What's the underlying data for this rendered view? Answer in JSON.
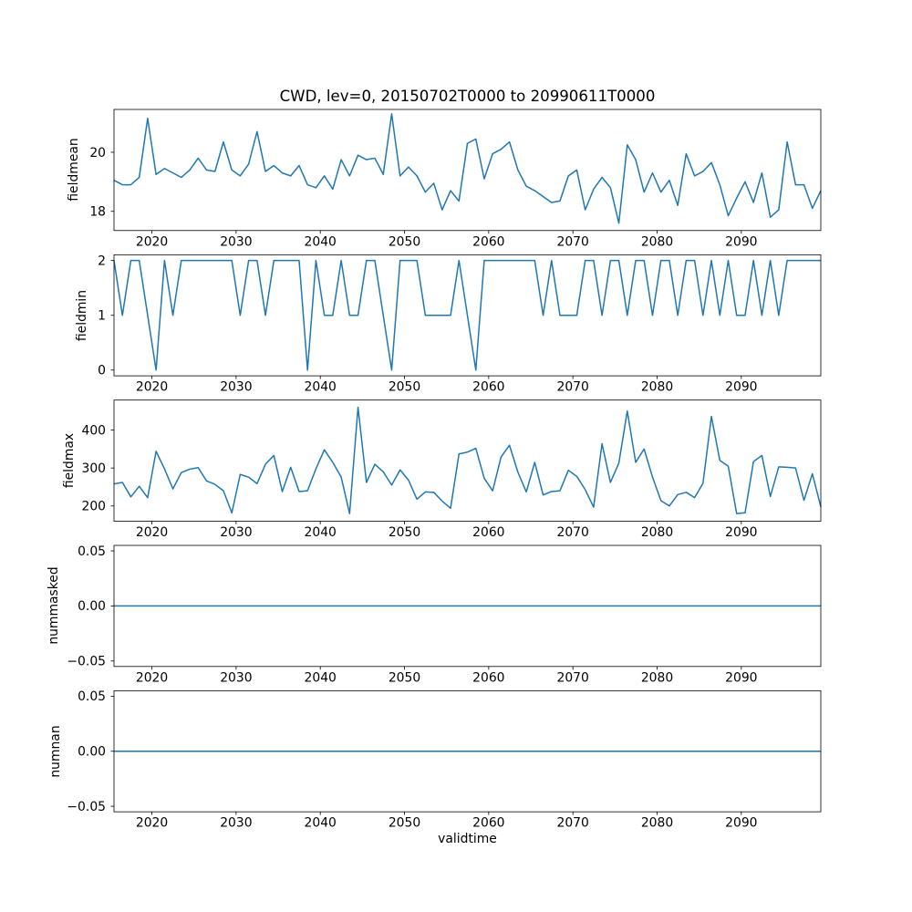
{
  "figure": {
    "background": "#ffffff",
    "text_color": "#000000"
  },
  "chart_data": {
    "type": "line",
    "title": "CWD, lev=0, 20150702T0000 to 20990611T0000",
    "xlabel": "validtime",
    "line_color": "#1f77b4",
    "grid": false,
    "legend": "off",
    "xlim": [
      2015.5,
      2099.44
    ],
    "x_ticks": [
      2020,
      2030,
      2040,
      2050,
      2060,
      2070,
      2080,
      2090
    ],
    "x_tick_labels": [
      "2020",
      "2030",
      "2040",
      "2050",
      "2060",
      "2070",
      "2080",
      "2090"
    ],
    "x_years": [
      2015,
      2016,
      2017,
      2018,
      2019,
      2020,
      2021,
      2022,
      2023,
      2024,
      2025,
      2026,
      2027,
      2028,
      2029,
      2030,
      2031,
      2032,
      2033,
      2034,
      2035,
      2036,
      2037,
      2038,
      2039,
      2040,
      2041,
      2042,
      2043,
      2044,
      2045,
      2046,
      2047,
      2048,
      2049,
      2050,
      2051,
      2052,
      2053,
      2054,
      2055,
      2056,
      2057,
      2058,
      2059,
      2060,
      2061,
      2062,
      2063,
      2064,
      2065,
      2066,
      2067,
      2068,
      2069,
      2070,
      2071,
      2072,
      2073,
      2074,
      2075,
      2076,
      2077,
      2078,
      2079,
      2080,
      2081,
      2082,
      2083,
      2084,
      2085,
      2086,
      2087,
      2088,
      2089,
      2090,
      2091,
      2092,
      2093,
      2094,
      2095,
      2096,
      2097,
      2098,
      2099
    ],
    "subplots": [
      {
        "ylabel": "fieldmean",
        "ylim": [
          17.35,
          21.45
        ],
        "y_ticks": [
          18,
          20
        ],
        "y_tick_labels": [
          "18",
          "20"
        ],
        "values": [
          19.05,
          18.9,
          18.9,
          19.15,
          21.15,
          19.25,
          19.45,
          19.3,
          19.15,
          19.4,
          19.8,
          19.4,
          19.35,
          20.35,
          19.4,
          19.2,
          19.6,
          20.7,
          19.35,
          19.55,
          19.3,
          19.2,
          19.55,
          18.9,
          18.8,
          19.2,
          18.75,
          19.75,
          19.2,
          19.9,
          19.75,
          19.8,
          19.25,
          21.3,
          19.2,
          19.5,
          19.2,
          18.65,
          18.95,
          18.05,
          18.7,
          18.35,
          20.3,
          20.45,
          19.1,
          19.95,
          20.1,
          20.35,
          19.4,
          18.85,
          18.7,
          18.5,
          18.3,
          18.35,
          19.2,
          19.4,
          18.05,
          18.75,
          19.15,
          18.8,
          17.6,
          20.25,
          19.75,
          18.65,
          19.3,
          18.65,
          19.05,
          18.2,
          19.95,
          19.2,
          19.35,
          19.65,
          18.9,
          17.85,
          18.45,
          19.0,
          18.3,
          19.3,
          17.8,
          18.05,
          20.35,
          18.9,
          18.9,
          18.1,
          18.7
        ]
      },
      {
        "ylabel": "fieldmin",
        "ylim": [
          -0.105,
          2.105
        ],
        "y_ticks": [
          0,
          1,
          2
        ],
        "y_tick_labels": [
          "0",
          "1",
          "2"
        ],
        "values": [
          2,
          1,
          2,
          2,
          1,
          0,
          2,
          1,
          2,
          2,
          2,
          2,
          2,
          2,
          2,
          1,
          2,
          2,
          1,
          2,
          2,
          2,
          2,
          0,
          2,
          1,
          1,
          2,
          1,
          1,
          2,
          2,
          1,
          0,
          2,
          2,
          2,
          1,
          1,
          1,
          1,
          2,
          1,
          0,
          2,
          2,
          2,
          2,
          2,
          2,
          2,
          1,
          2,
          1,
          1,
          1,
          2,
          2,
          1,
          2,
          2,
          1,
          2,
          2,
          1,
          2,
          2,
          1,
          2,
          2,
          1,
          2,
          1,
          2,
          1,
          1,
          2,
          1,
          2,
          1,
          2,
          2,
          2,
          2,
          2
        ]
      },
      {
        "ylabel": "fieldmax",
        "ylim": [
          160,
          479
        ],
        "y_ticks": [
          200,
          300,
          400
        ],
        "y_tick_labels": [
          "200",
          "300",
          "400"
        ],
        "values": [
          258,
          262,
          224,
          252,
          222,
          344,
          298,
          245,
          288,
          297,
          301,
          266,
          257,
          240,
          182,
          283,
          276,
          259,
          310,
          333,
          238,
          302,
          238,
          240,
          298,
          348,
          315,
          276,
          180,
          460,
          262,
          310,
          290,
          255,
          295,
          268,
          218,
          237,
          236,
          213,
          194,
          337,
          342,
          352,
          273,
          240,
          329,
          360,
          289,
          237,
          315,
          229,
          238,
          240,
          294,
          278,
          243,
          197,
          364,
          262,
          313,
          450,
          315,
          350,
          276,
          214,
          200,
          230,
          236,
          222,
          260,
          436,
          320,
          305,
          180,
          182,
          317,
          333,
          225,
          303,
          302,
          300,
          215,
          285,
          198
        ]
      },
      {
        "ylabel": "nummasked",
        "ylim": [
          -0.055,
          0.055
        ],
        "y_ticks": [
          0.05,
          0.0,
          -0.05
        ],
        "y_tick_labels": [
          "0.05",
          "0.00",
          "−0.05"
        ],
        "values": [
          0,
          0,
          0,
          0,
          0,
          0,
          0,
          0,
          0,
          0,
          0,
          0,
          0,
          0,
          0,
          0,
          0,
          0,
          0,
          0,
          0,
          0,
          0,
          0,
          0,
          0,
          0,
          0,
          0,
          0,
          0,
          0,
          0,
          0,
          0,
          0,
          0,
          0,
          0,
          0,
          0,
          0,
          0,
          0,
          0,
          0,
          0,
          0,
          0,
          0,
          0,
          0,
          0,
          0,
          0,
          0,
          0,
          0,
          0,
          0,
          0,
          0,
          0,
          0,
          0,
          0,
          0,
          0,
          0,
          0,
          0,
          0,
          0,
          0,
          0,
          0,
          0,
          0,
          0,
          0,
          0,
          0,
          0,
          0,
          0
        ]
      },
      {
        "ylabel": "numnan",
        "ylim": [
          -0.055,
          0.055
        ],
        "y_ticks": [
          0.05,
          0.0,
          -0.05
        ],
        "y_tick_labels": [
          "0.05",
          "0.00",
          "−0.05"
        ],
        "values": [
          0,
          0,
          0,
          0,
          0,
          0,
          0,
          0,
          0,
          0,
          0,
          0,
          0,
          0,
          0,
          0,
          0,
          0,
          0,
          0,
          0,
          0,
          0,
          0,
          0,
          0,
          0,
          0,
          0,
          0,
          0,
          0,
          0,
          0,
          0,
          0,
          0,
          0,
          0,
          0,
          0,
          0,
          0,
          0,
          0,
          0,
          0,
          0,
          0,
          0,
          0,
          0,
          0,
          0,
          0,
          0,
          0,
          0,
          0,
          0,
          0,
          0,
          0,
          0,
          0,
          0,
          0,
          0,
          0,
          0,
          0,
          0,
          0,
          0,
          0,
          0,
          0,
          0,
          0,
          0,
          0,
          0,
          0,
          0,
          0
        ]
      }
    ]
  }
}
